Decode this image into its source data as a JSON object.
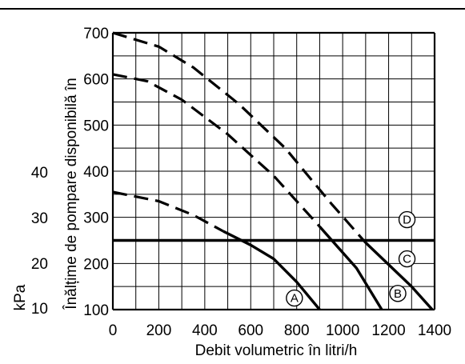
{
  "chart_data": {
    "type": "line",
    "xlabel": "Debit volumetric în litri/h",
    "ylabel": "Înălțime de pompare disponibilă în",
    "ylabel_unit": "kPa",
    "x_ticks": [
      0,
      200,
      400,
      600,
      800,
      1000,
      1200,
      1400
    ],
    "y_ticks": [
      100,
      200,
      300,
      400,
      500,
      600,
      700
    ],
    "secondary_y_ticks": [
      10,
      20,
      30,
      40
    ],
    "xlim": [
      0,
      1400
    ],
    "ylim": [
      100,
      700
    ],
    "grid": true,
    "grid_x_step": 100,
    "grid_y_step": 50,
    "series": [
      {
        "label": "A",
        "label_at": [
          790,
          125
        ],
        "dashed": [
          [
            0,
            355
          ],
          [
            200,
            335
          ],
          [
            350,
            305
          ],
          [
            480,
            270
          ]
        ],
        "solid": [
          [
            480,
            270
          ],
          [
            600,
            240
          ],
          [
            700,
            210
          ],
          [
            800,
            160
          ],
          [
            900,
            100
          ]
        ]
      },
      {
        "label": "B",
        "label_at": [
          1240,
          135
        ],
        "dashed": [
          [
            0,
            610
          ],
          [
            150,
            595
          ],
          [
            300,
            555
          ],
          [
            500,
            480
          ],
          [
            700,
            390
          ],
          [
            900,
            280
          ]
        ],
        "solid": [
          [
            900,
            280
          ],
          [
            1060,
            190
          ],
          [
            1170,
            100
          ]
        ]
      },
      {
        "label": "C",
        "label_at": [
          1280,
          210
        ],
        "dashed": [
          [
            0,
            700
          ],
          [
            200,
            670
          ],
          [
            350,
            625
          ],
          [
            550,
            545
          ],
          [
            750,
            450
          ],
          [
            950,
            330
          ],
          [
            1100,
            245
          ]
        ],
        "solid": [
          [
            1100,
            245
          ],
          [
            1300,
            150
          ],
          [
            1390,
            100
          ]
        ]
      },
      {
        "label": "D",
        "label_at": [
          1280,
          295
        ],
        "solid": [
          [
            0,
            250
          ],
          [
            1400,
            250
          ]
        ]
      }
    ]
  }
}
